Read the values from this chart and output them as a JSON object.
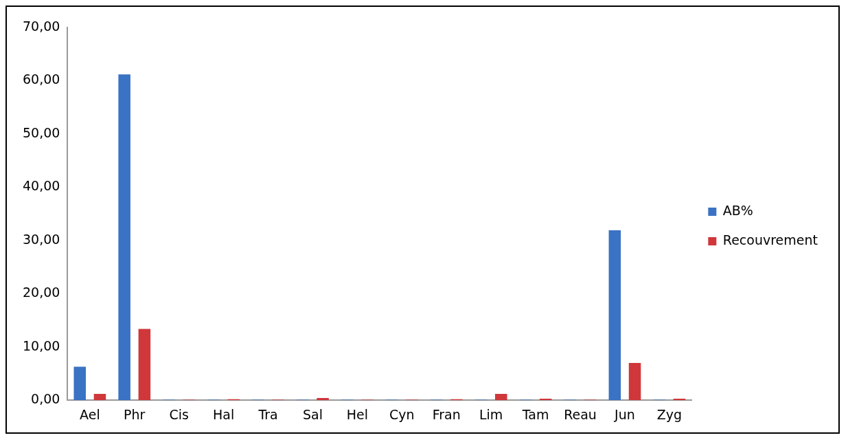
{
  "chart_data": {
    "type": "bar",
    "categories": [
      "Ael",
      "Phr",
      "Cis",
      "Hal",
      "Tra",
      "Sal",
      "Hel",
      "Cyn",
      "Fran",
      "Lim",
      "Tam",
      "Reau",
      "Jun",
      "Zyg"
    ],
    "series": [
      {
        "name": "AB%",
        "color": "#3a72c4",
        "values": [
          6.3,
          61.2,
          0.1,
          0.1,
          0.1,
          0.1,
          0.1,
          0.1,
          0.1,
          0.1,
          0.1,
          0.1,
          31.9,
          0.1
        ]
      },
      {
        "name": "Recouvrement",
        "color": "#d0373a",
        "values": [
          1.2,
          13.4,
          0.1,
          0.2,
          0.1,
          0.4,
          0.1,
          0.1,
          0.2,
          1.2,
          0.3,
          0.1,
          7.0,
          0.3
        ]
      }
    ],
    "ylim": [
      0,
      70
    ],
    "yticks": [
      {
        "value": 0,
        "label": "0,00"
      },
      {
        "value": 10,
        "label": "10,00"
      },
      {
        "value": 20,
        "label": "20,00"
      },
      {
        "value": 30,
        "label": "30,00"
      },
      {
        "value": 40,
        "label": "40,00"
      },
      {
        "value": 50,
        "label": "50,00"
      },
      {
        "value": 60,
        "label": "60,00"
      },
      {
        "value": 70,
        "label": "70,00"
      }
    ],
    "grid": false,
    "legend": "right"
  }
}
